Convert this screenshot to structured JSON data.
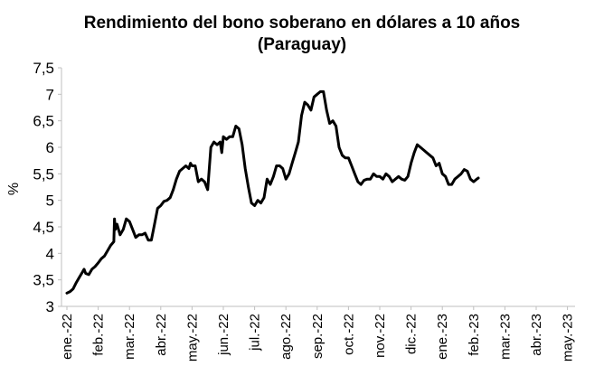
{
  "chart_data": {
    "type": "line",
    "title": "Rendimiento del bono soberano en dólares a 10 años",
    "subtitle": "(Paraguay)",
    "ylabel": "%",
    "xlabel": "",
    "ylim": [
      3,
      7.5
    ],
    "yticks": [
      "3",
      "3,5",
      "4",
      "4,5",
      "5",
      "5,5",
      "6",
      "6,5",
      "7",
      "7,5"
    ],
    "ytick_values": [
      3,
      3.5,
      4,
      4.5,
      5,
      5.5,
      6,
      6.5,
      7,
      7.5
    ],
    "xticks": [
      "ene.-22",
      "feb.-22",
      "mar.-22",
      "abr.-22",
      "may.-22",
      "jun.-22",
      "jul.-22",
      "ago.-22",
      "sep.-22",
      "oct.-22",
      "nov.-22",
      "dic.-22",
      "ene.-23",
      "feb.-23",
      "mar.-23",
      "abr.-23",
      "may.-23"
    ],
    "x_unit": "month index (0 = ene.-22)",
    "grid": false,
    "legend": "none",
    "line_color": "#000000",
    "series": [
      {
        "points": [
          [
            0.0,
            3.25
          ],
          [
            0.1,
            3.28
          ],
          [
            0.2,
            3.33
          ],
          [
            0.3,
            3.45
          ],
          [
            0.4,
            3.55
          ],
          [
            0.5,
            3.65
          ],
          [
            0.55,
            3.7
          ],
          [
            0.6,
            3.62
          ],
          [
            0.7,
            3.6
          ],
          [
            0.8,
            3.7
          ],
          [
            0.9,
            3.75
          ],
          [
            1.0,
            3.82
          ],
          [
            1.1,
            3.9
          ],
          [
            1.2,
            3.95
          ],
          [
            1.3,
            4.05
          ],
          [
            1.4,
            4.15
          ],
          [
            1.5,
            4.22
          ],
          [
            1.52,
            4.65
          ],
          [
            1.55,
            4.45
          ],
          [
            1.6,
            4.55
          ],
          [
            1.7,
            4.35
          ],
          [
            1.8,
            4.45
          ],
          [
            1.9,
            4.65
          ],
          [
            2.0,
            4.6
          ],
          [
            2.1,
            4.45
          ],
          [
            2.2,
            4.3
          ],
          [
            2.3,
            4.35
          ],
          [
            2.4,
            4.35
          ],
          [
            2.5,
            4.38
          ],
          [
            2.6,
            4.25
          ],
          [
            2.7,
            4.25
          ],
          [
            2.8,
            4.55
          ],
          [
            2.9,
            4.85
          ],
          [
            3.0,
            4.9
          ],
          [
            3.1,
            4.98
          ],
          [
            3.2,
            5.0
          ],
          [
            3.3,
            5.05
          ],
          [
            3.4,
            5.2
          ],
          [
            3.5,
            5.4
          ],
          [
            3.6,
            5.55
          ],
          [
            3.7,
            5.6
          ],
          [
            3.8,
            5.65
          ],
          [
            3.9,
            5.6
          ],
          [
            3.95,
            5.7
          ],
          [
            4.0,
            5.65
          ],
          [
            4.1,
            5.65
          ],
          [
            4.2,
            5.35
          ],
          [
            4.3,
            5.4
          ],
          [
            4.4,
            5.35
          ],
          [
            4.5,
            5.2
          ],
          [
            4.6,
            6.0
          ],
          [
            4.7,
            6.1
          ],
          [
            4.8,
            6.05
          ],
          [
            4.9,
            6.1
          ],
          [
            4.95,
            5.9
          ],
          [
            5.0,
            6.2
          ],
          [
            5.1,
            6.15
          ],
          [
            5.2,
            6.2
          ],
          [
            5.3,
            6.2
          ],
          [
            5.4,
            6.4
          ],
          [
            5.5,
            6.35
          ],
          [
            5.6,
            6.05
          ],
          [
            5.7,
            5.6
          ],
          [
            5.8,
            5.25
          ],
          [
            5.9,
            4.95
          ],
          [
            6.0,
            4.9
          ],
          [
            6.1,
            5.0
          ],
          [
            6.2,
            4.95
          ],
          [
            6.3,
            5.05
          ],
          [
            6.4,
            5.4
          ],
          [
            6.5,
            5.3
          ],
          [
            6.6,
            5.45
          ],
          [
            6.7,
            5.65
          ],
          [
            6.8,
            5.65
          ],
          [
            6.9,
            5.6
          ],
          [
            7.0,
            5.4
          ],
          [
            7.1,
            5.5
          ],
          [
            7.2,
            5.7
          ],
          [
            7.3,
            5.9
          ],
          [
            7.4,
            6.1
          ],
          [
            7.5,
            6.6
          ],
          [
            7.6,
            6.85
          ],
          [
            7.7,
            6.8
          ],
          [
            7.8,
            6.7
          ],
          [
            7.9,
            6.95
          ],
          [
            8.0,
            7.0
          ],
          [
            8.1,
            7.05
          ],
          [
            8.2,
            7.05
          ],
          [
            8.3,
            6.7
          ],
          [
            8.4,
            6.45
          ],
          [
            8.5,
            6.5
          ],
          [
            8.6,
            6.4
          ],
          [
            8.7,
            6.0
          ],
          [
            8.8,
            5.85
          ],
          [
            8.9,
            5.8
          ],
          [
            9.0,
            5.8
          ],
          [
            9.1,
            5.65
          ],
          [
            9.2,
            5.5
          ],
          [
            9.3,
            5.35
          ],
          [
            9.4,
            5.3
          ],
          [
            9.5,
            5.38
          ],
          [
            9.6,
            5.4
          ],
          [
            9.7,
            5.4
          ],
          [
            9.8,
            5.5
          ],
          [
            9.9,
            5.45
          ],
          [
            10.0,
            5.45
          ],
          [
            10.1,
            5.4
          ],
          [
            10.2,
            5.5
          ],
          [
            10.3,
            5.45
          ],
          [
            10.4,
            5.35
          ],
          [
            10.5,
            5.4
          ],
          [
            10.6,
            5.45
          ],
          [
            10.7,
            5.4
          ],
          [
            10.8,
            5.38
          ],
          [
            10.9,
            5.45
          ],
          [
            11.0,
            5.7
          ],
          [
            11.1,
            5.9
          ],
          [
            11.2,
            6.05
          ],
          [
            11.3,
            6.0
          ],
          [
            11.4,
            5.95
          ],
          [
            11.5,
            5.9
          ],
          [
            11.6,
            5.85
          ],
          [
            11.7,
            5.8
          ],
          [
            11.8,
            5.65
          ],
          [
            11.9,
            5.7
          ],
          [
            12.0,
            5.5
          ],
          [
            12.1,
            5.45
          ],
          [
            12.2,
            5.3
          ],
          [
            12.3,
            5.3
          ],
          [
            12.4,
            5.4
          ],
          [
            12.5,
            5.45
          ],
          [
            12.6,
            5.5
          ],
          [
            12.7,
            5.58
          ],
          [
            12.8,
            5.55
          ],
          [
            12.9,
            5.4
          ],
          [
            13.0,
            5.35
          ],
          [
            13.1,
            5.4
          ],
          [
            13.15,
            5.42
          ]
        ]
      }
    ]
  }
}
